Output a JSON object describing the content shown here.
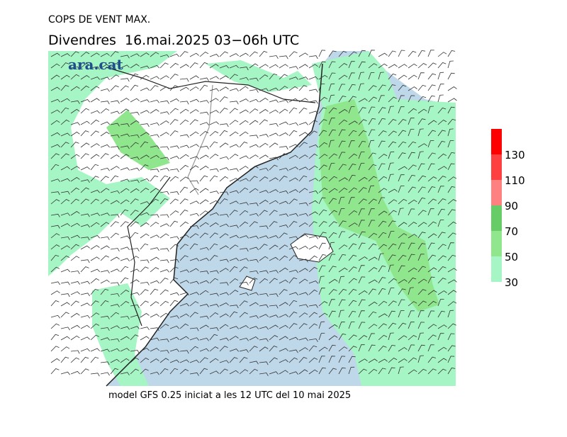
{
  "header": {
    "title": "COPS DE VENT MAX.",
    "subtitle": "Divendres  16.mai.2025 03−06h UTC"
  },
  "logo": "ara.cat",
  "footer": "model GFS 0.25 iniciat a les 12 UTC del 10 mai 2025",
  "legend": {
    "ticks": [
      30,
      50,
      70,
      90,
      110,
      130
    ],
    "lim": [
      30,
      150
    ],
    "colors": [
      "#a6f5c4",
      "#8fe68c",
      "#66cc66",
      "#ff8080",
      "#ff4040",
      "#ff0000"
    ]
  }
}
